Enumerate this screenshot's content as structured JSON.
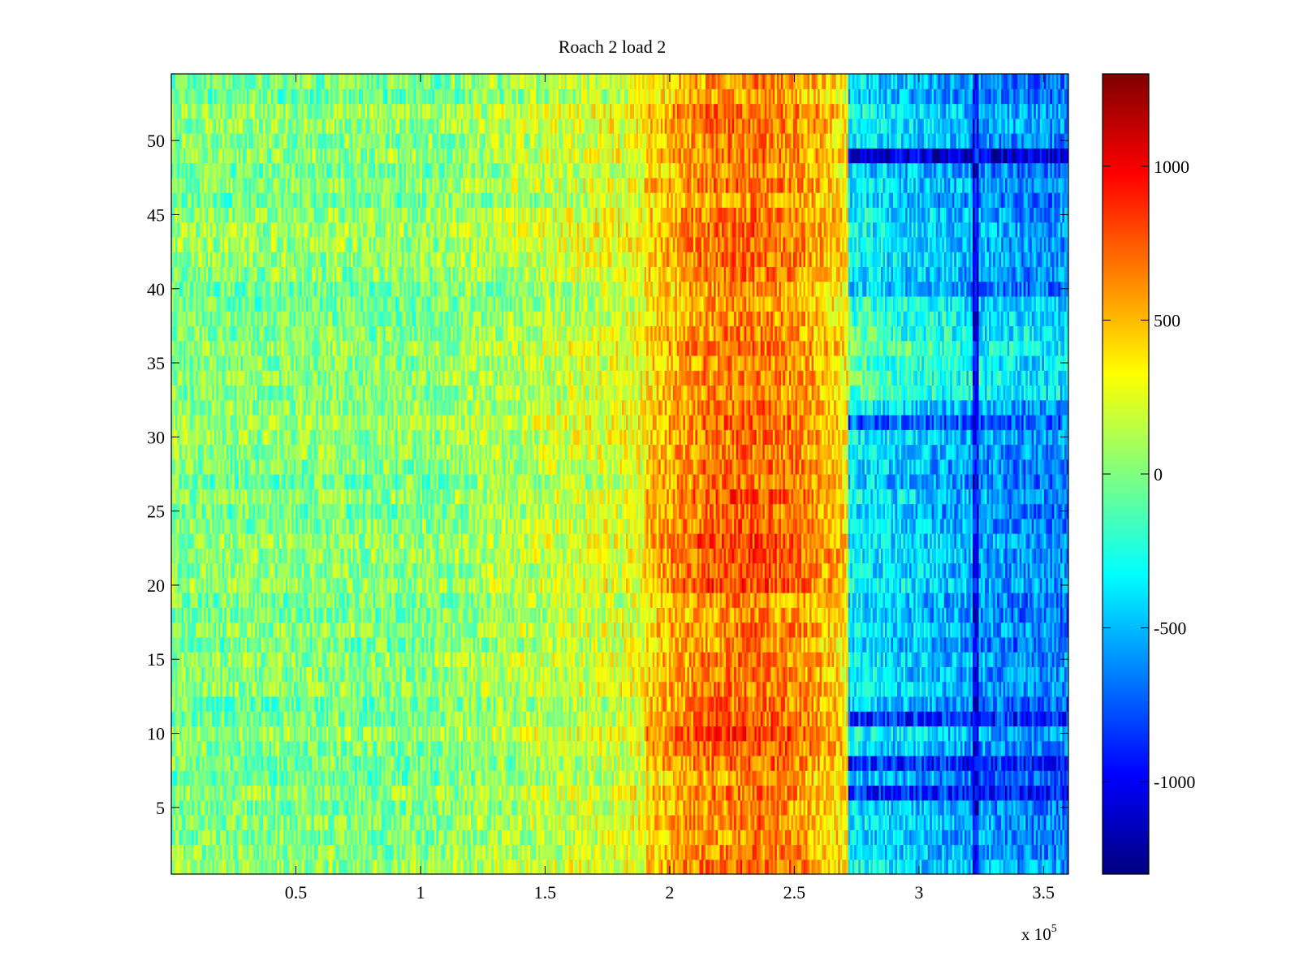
{
  "chart_data": {
    "type": "heatmap",
    "title": "Roach 2 load 2",
    "xlabel": "",
    "ylabel": "",
    "x_multiplier_label": "x 10",
    "x_multiplier_exponent": "5",
    "xlim": [
      0,
      3.6
    ],
    "ylim": [
      0.5,
      54.5
    ],
    "x_ticks": [
      0.5,
      1,
      1.5,
      2,
      2.5,
      3,
      3.5
    ],
    "x_tick_labels": [
      "0.5",
      "1",
      "1.5",
      "2",
      "2.5",
      "3",
      "3.5"
    ],
    "y_ticks": [
      5,
      10,
      15,
      20,
      25,
      30,
      35,
      40,
      45,
      50
    ],
    "y_tick_labels": [
      "5",
      "10",
      "15",
      "20",
      "25",
      "30",
      "35",
      "40",
      "45",
      "50"
    ],
    "rows": 54,
    "colorbar": {
      "colormap": "jet",
      "clim": [
        -1300,
        1300
      ],
      "ticks": [
        -1000,
        -500,
        0,
        500,
        1000
      ],
      "tick_labels": [
        "-1000",
        "-500",
        "0",
        "500",
        "1000"
      ]
    },
    "pattern": {
      "base_value": 0,
      "hot_band": {
        "x_range": [
          1.9,
          2.7
        ],
        "peak_value": 650
      },
      "cold_region": {
        "x_start": 2.72,
        "value": -650
      },
      "cold_rows": [
        {
          "row": 49,
          "value": -1150
        },
        {
          "row": 6,
          "value": -950
        },
        {
          "row": 8,
          "value": -850
        },
        {
          "row": 11,
          "value": -850
        },
        {
          "row": 31,
          "value": -800
        }
      ],
      "cold_line": {
        "x": 3.23,
        "value": -1000
      }
    },
    "grid": false,
    "legend": "none"
  }
}
